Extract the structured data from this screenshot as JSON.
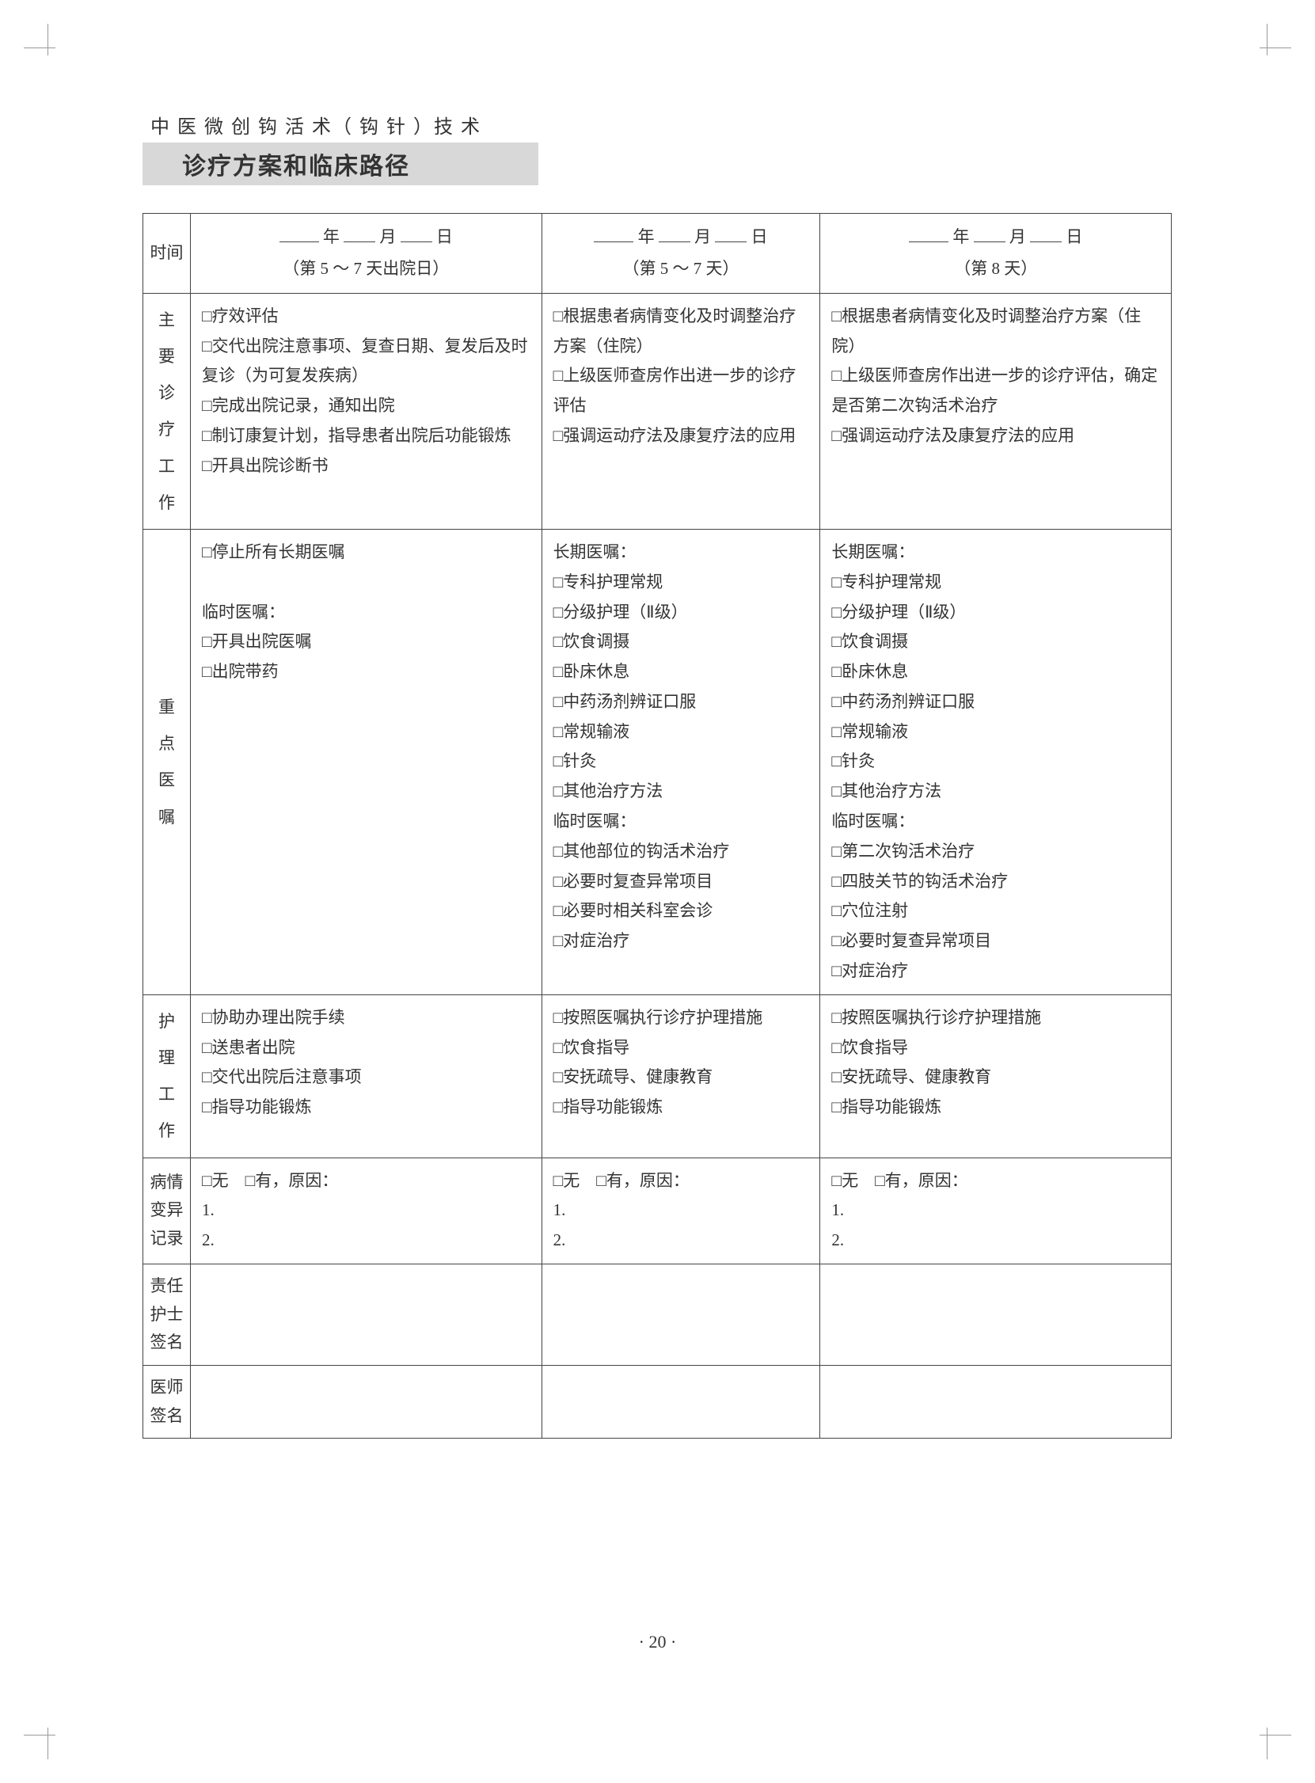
{
  "header": {
    "top_line": "中 医 微 创 钩 活 术（ 钩 针 ）技 术",
    "bottom_line": "诊疗方案和临床路径"
  },
  "table": {
    "row_headers": {
      "time": "时间",
      "main_treatment": [
        "主",
        "要",
        "诊",
        "疗",
        "工",
        "作"
      ],
      "key_orders": [
        "重",
        "点",
        "医",
        "嘱"
      ],
      "nursing": [
        "护",
        "理",
        "工",
        "作"
      ],
      "variation": [
        "病情",
        "变异",
        "记录"
      ],
      "nurse_sig": [
        "责任",
        "护士",
        "签名"
      ],
      "doctor_sig": [
        "医师",
        "签名"
      ]
    },
    "columns": [
      {
        "date_parts": [
          "年",
          "月",
          "日"
        ],
        "subtitle": "（第 5 ～ 7 天出院日）",
        "main_treatment": [
          "□疗效评估",
          "□交代出院注意事项、复查日期、复发后及时复诊（为可复发疾病）",
          "□完成出院记录，通知出院",
          "□制订康复计划，指导患者出院后功能锻炼",
          "□开具出院诊断书"
        ],
        "key_orders": [
          "□停止所有长期医嘱",
          "",
          "临时医嘱：",
          "□开具出院医嘱",
          "□出院带药"
        ],
        "nursing": [
          "□协助办理出院手续",
          "□送患者出院",
          "□交代出院后注意事项",
          "□指导功能锻炼"
        ],
        "variation": [
          "□无　□有，原因：",
          "1.",
          "2."
        ]
      },
      {
        "date_parts": [
          "年",
          "月",
          "日"
        ],
        "subtitle": "（第 5 ～ 7 天）",
        "main_treatment": [
          "□根据患者病情变化及时调整治疗方案（住院）",
          "□上级医师查房作出进一步的诊疗评估",
          "□强调运动疗法及康复疗法的应用"
        ],
        "key_orders": [
          "长期医嘱：",
          "□专科护理常规",
          "□分级护理（Ⅱ级）",
          "□饮食调摄",
          "□卧床休息",
          "□中药汤剂辨证口服",
          "□常规输液",
          "□针灸",
          "□其他治疗方法",
          "临时医嘱：",
          "□其他部位的钩活术治疗",
          "□必要时复查异常项目",
          "□必要时相关科室会诊",
          "□对症治疗"
        ],
        "nursing": [
          "□按照医嘱执行诊疗护理措施",
          "□饮食指导",
          "□安抚疏导、健康教育",
          "□指导功能锻炼"
        ],
        "variation": [
          "□无　□有，原因：",
          "1.",
          "2."
        ]
      },
      {
        "date_parts": [
          "年",
          "月",
          "日"
        ],
        "subtitle": "（第 8 天）",
        "main_treatment": [
          "□根据患者病情变化及时调整治疗方案（住院）",
          "□上级医师查房作出进一步的诊疗评估，确定是否第二次钩活术治疗",
          "□强调运动疗法及康复疗法的应用"
        ],
        "key_orders": [
          "长期医嘱：",
          "□专科护理常规",
          "□分级护理（Ⅱ级）",
          "□饮食调摄",
          "□卧床休息",
          "□中药汤剂辨证口服",
          "□常规输液",
          "□针灸",
          "□其他治疗方法",
          "临时医嘱：",
          "□第二次钩活术治疗",
          "□四肢关节的钩活术治疗",
          "□穴位注射",
          "□必要时复查异常项目",
          "□对症治疗"
        ],
        "nursing": [
          "□按照医嘱执行诊疗护理措施",
          "□饮食指导",
          "□安抚疏导、健康教育",
          "□指导功能锻炼"
        ],
        "variation": [
          "□无　□有，原因：",
          "1.",
          "2."
        ]
      }
    ]
  },
  "page_number": "· 20 ·"
}
